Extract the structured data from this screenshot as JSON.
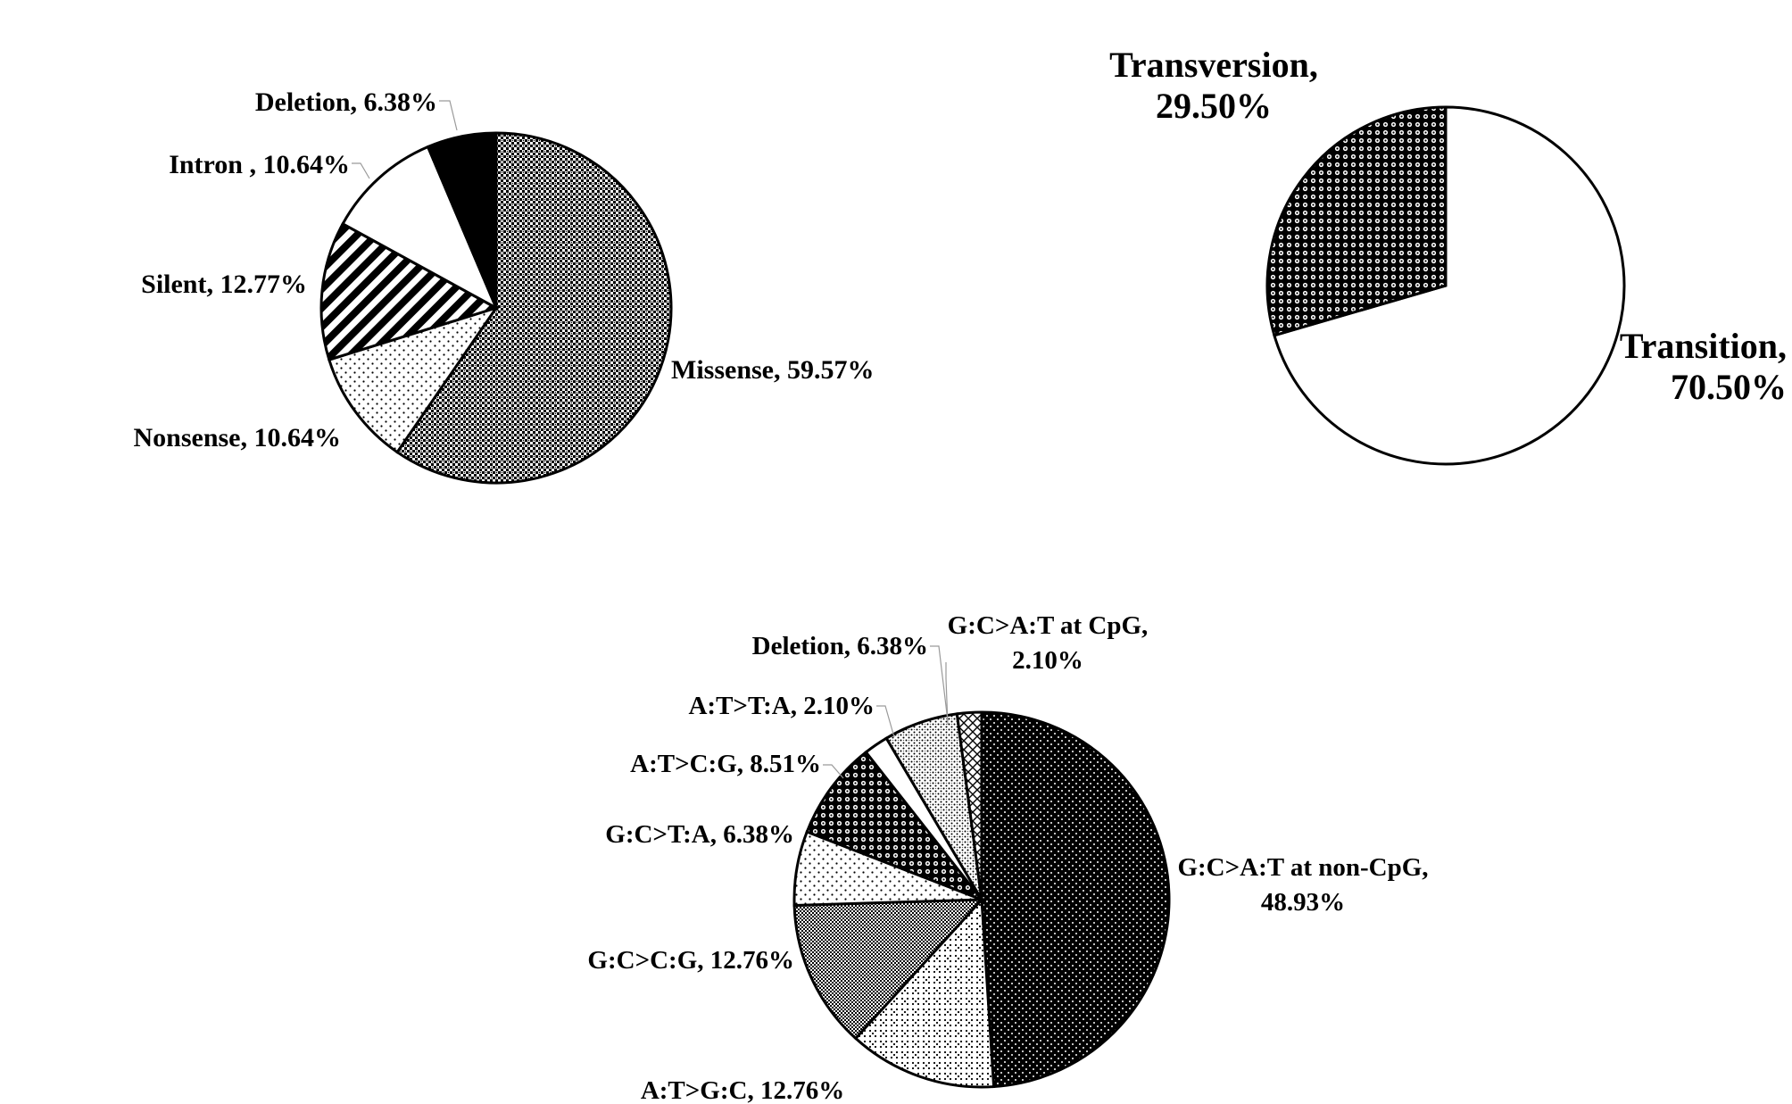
{
  "chart_data": [
    {
      "type": "pie",
      "title": "",
      "slices": [
        {
          "label": "Missense, 59.57%",
          "value": 59.57,
          "pattern": "checker-dense"
        },
        {
          "label": "Nonsense, 10.64%",
          "value": 10.64,
          "pattern": "dots-sparse"
        },
        {
          "label": "Silent, 12.77%",
          "value": 12.77,
          "pattern": "diagonal-stripes"
        },
        {
          "label": "Intron , 10.64%",
          "value": 10.64,
          "pattern": "white"
        },
        {
          "label": "Deletion, 6.38%",
          "value": 6.38,
          "pattern": "solid-black"
        }
      ]
    },
    {
      "type": "pie",
      "title": "",
      "slices": [
        {
          "label": [
            "Transition,",
            "70.50%"
          ],
          "value": 70.5,
          "pattern": "white"
        },
        {
          "label": [
            "Transversion,",
            "29.50%"
          ],
          "value": 29.5,
          "pattern": "circle-grid"
        }
      ]
    },
    {
      "type": "pie",
      "title": "",
      "slices": [
        {
          "label": [
            "G:C>A:T at non-CpG,",
            "48.93%"
          ],
          "value": 48.93,
          "pattern": "dots-on-black"
        },
        {
          "label": "A:T>G:C, 12.76%",
          "value": 12.76,
          "pattern": "dots-diamond"
        },
        {
          "label": "G:C>C:G, 12.76%",
          "value": 12.76,
          "pattern": "checker-fine"
        },
        {
          "label": "G:C>T:A, 6.38%",
          "value": 6.38,
          "pattern": "dots-sparse"
        },
        {
          "label": "A:T>C:G, 8.51%",
          "value": 8.51,
          "pattern": "circle-grid"
        },
        {
          "label": "A:T>T:A, 2.10%",
          "value": 2.1,
          "pattern": "white"
        },
        {
          "label": "Deletion, 6.38%",
          "value": 6.38,
          "pattern": "dots-gray"
        },
        {
          "label": [
            "G:C>A:T at CpG,",
            "2.10%"
          ],
          "value": 2.1,
          "pattern": "crosshatch"
        }
      ]
    }
  ]
}
